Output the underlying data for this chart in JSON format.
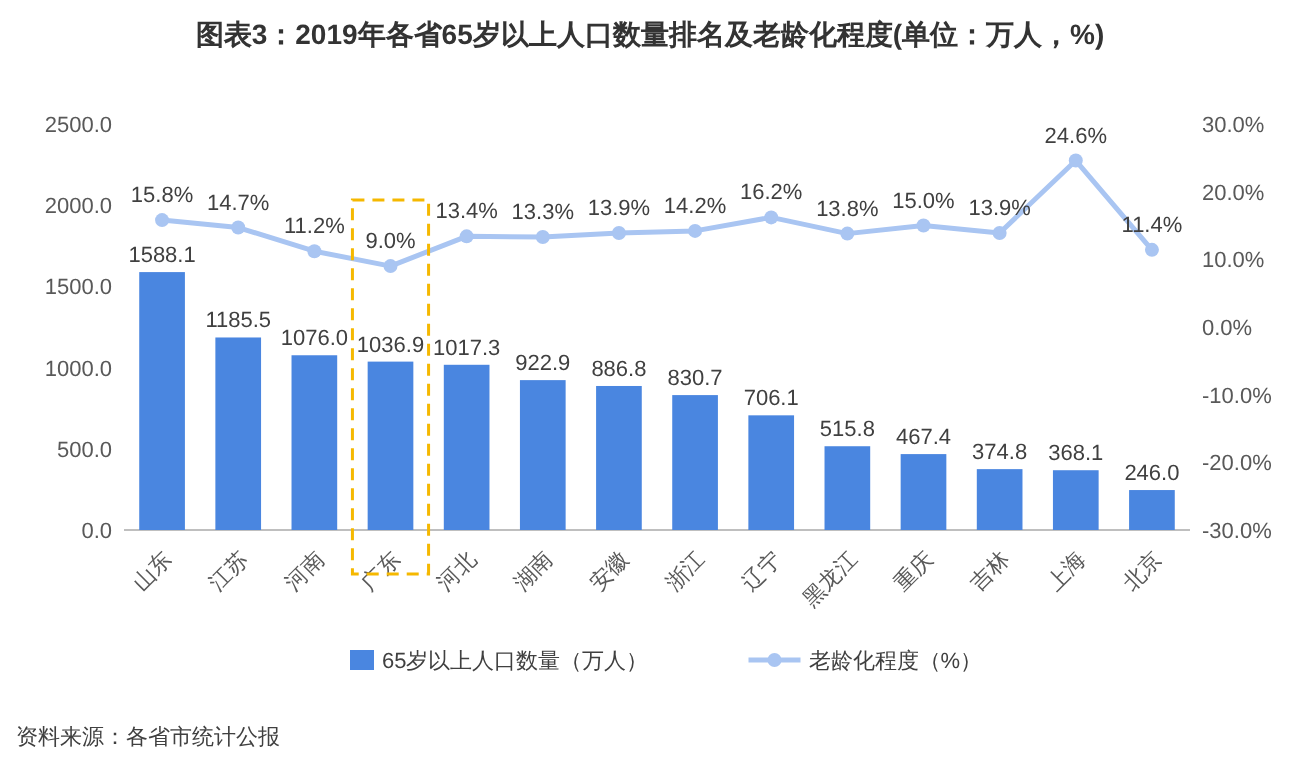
{
  "chart_data": {
    "type": "bar",
    "title": "图表3：2019年各省65岁以上人口数量排名及老龄化程度(单位：万人，%)",
    "categories": [
      "山东",
      "江苏",
      "河南",
      "广东",
      "河北",
      "湖南",
      "安徽",
      "浙江",
      "辽宁",
      "黑龙江",
      "重庆",
      "吉林",
      "上海",
      "北京"
    ],
    "series": [
      {
        "name": "65岁以上人口数量（万人）",
        "color": "#4a86e0",
        "values": [
          1588.1,
          1185.5,
          1076.0,
          1036.9,
          1017.3,
          922.9,
          886.8,
          830.7,
          706.1,
          515.8,
          467.4,
          374.8,
          368.1,
          246.0
        ],
        "value_labels": [
          "1588.1",
          "1185.5",
          "1076.0",
          "1036.9",
          "1017.3",
          "922.9",
          "886.8",
          "830.7",
          "706.1",
          "515.8",
          "467.4",
          "374.8",
          "368.1",
          "246.0"
        ]
      },
      {
        "name": "老龄化程度（%）",
        "type": "line",
        "axis": "y2",
        "color": "#a9c5f2",
        "values": [
          15.8,
          14.7,
          11.2,
          9.0,
          13.4,
          13.3,
          13.9,
          14.2,
          16.2,
          13.8,
          15.0,
          13.9,
          24.6,
          11.4
        ],
        "value_labels": [
          "15.8%",
          "14.7%",
          "11.2%",
          "9.0%",
          "13.4%",
          "13.3%",
          "13.9%",
          "14.2%",
          "16.2%",
          "13.8%",
          "15.0%",
          "13.9%",
          "24.6%",
          "11.4%"
        ]
      }
    ],
    "marker": "circle",
    "ylim": [
      0,
      2500
    ],
    "yticks": [
      {
        "value": 0,
        "label": "0.0"
      },
      {
        "value": 500,
        "label": "500.0"
      },
      {
        "value": 1000,
        "label": "1000.0"
      },
      {
        "value": 1500,
        "label": "1500.0"
      },
      {
        "value": 2000,
        "label": "2000.0"
      },
      {
        "value": 2500,
        "label": "2500.0"
      }
    ],
    "y2lim": [
      -30,
      30
    ],
    "y2ticks": [
      {
        "value": -30,
        "label": "-30.0%"
      },
      {
        "value": -20,
        "label": "-20.0%"
      },
      {
        "value": -10,
        "label": "-10.0%"
      },
      {
        "value": 0,
        "label": "0.0%"
      },
      {
        "value": 10,
        "label": "10.0%"
      },
      {
        "value": 20,
        "label": "20.0%"
      },
      {
        "value": 30,
        "label": "30.0%"
      }
    ],
    "legend": "bottom",
    "annotations": [
      "资料来源：各省市统计公报"
    ]
  }
}
